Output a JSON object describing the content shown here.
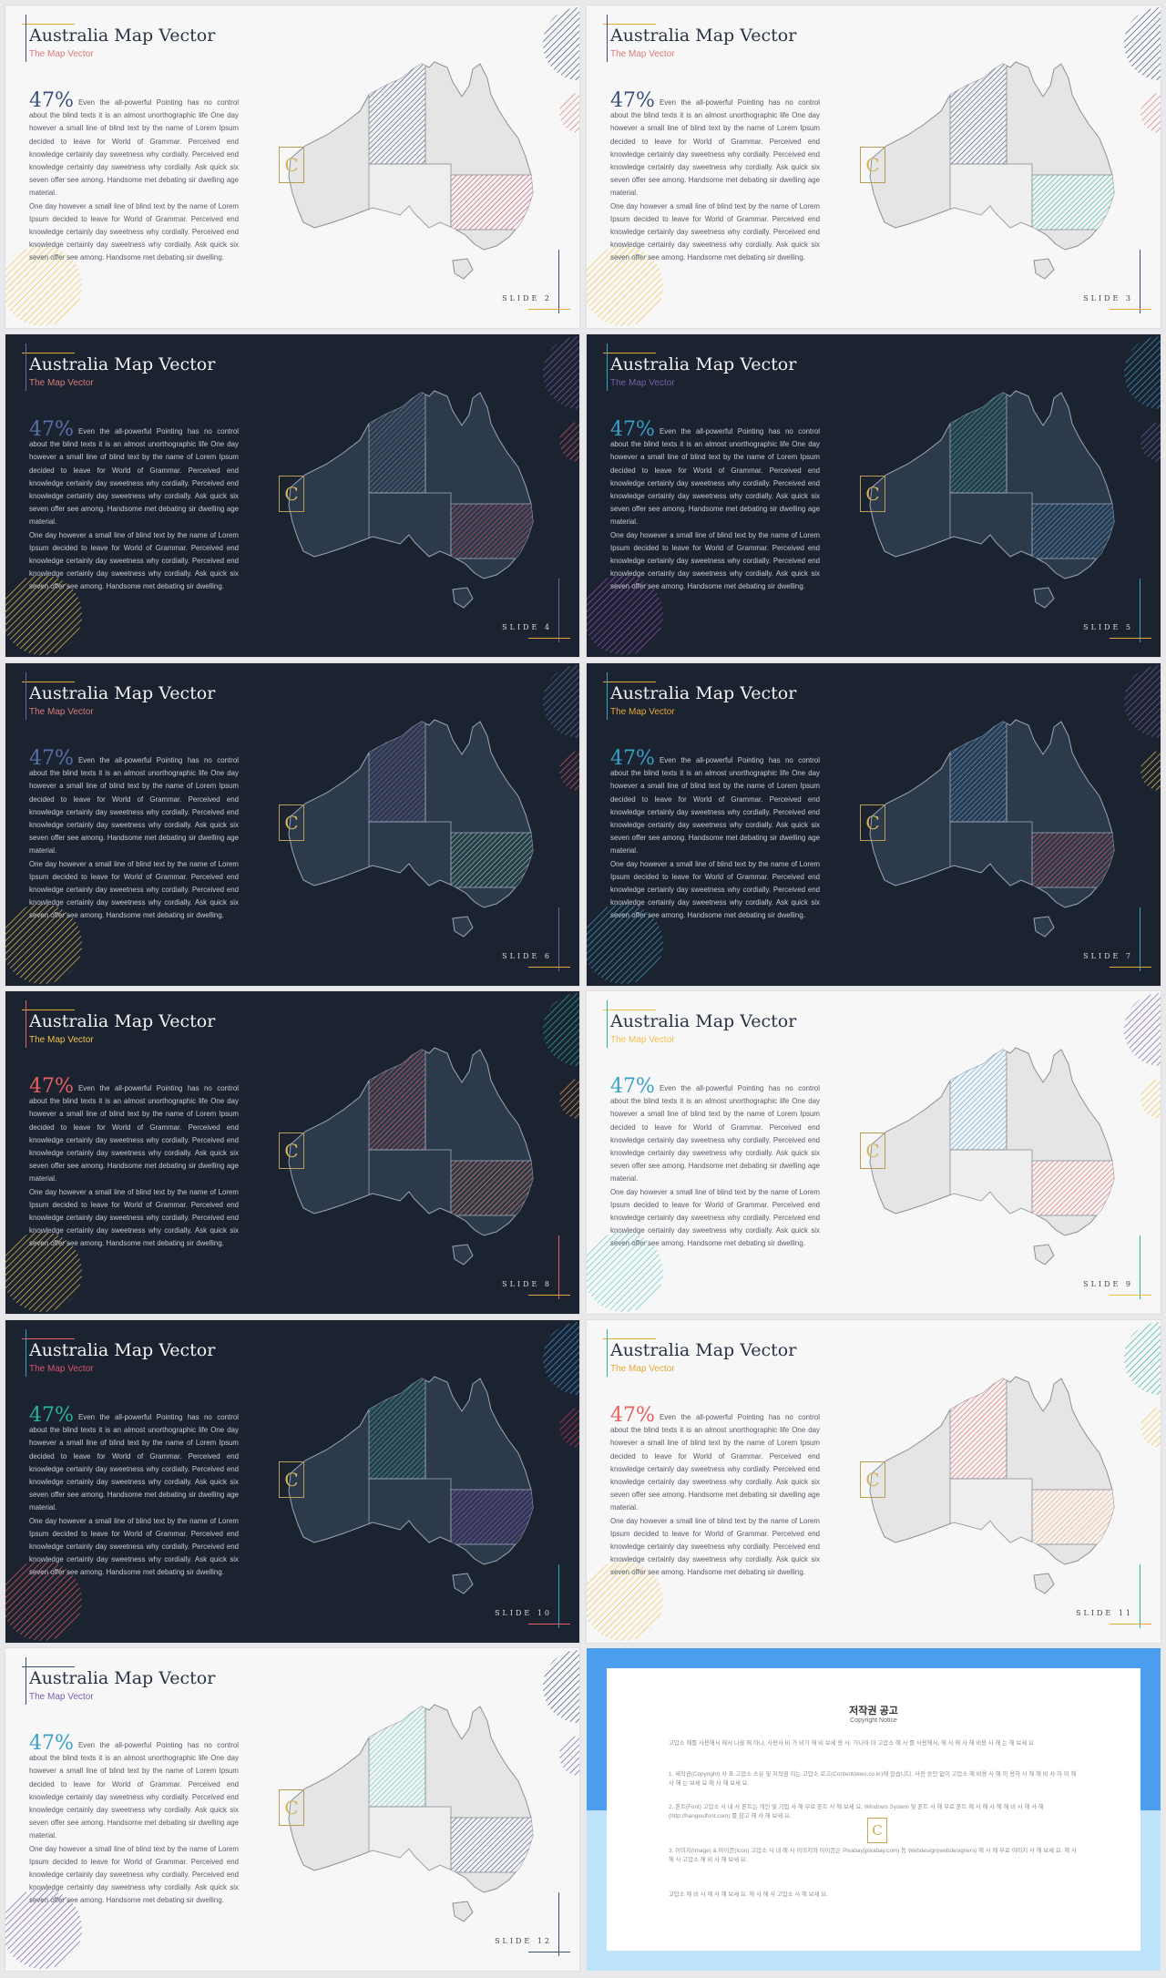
{
  "common": {
    "title": "Australia Map Vector",
    "subtitle": "The Map Vector",
    "percent": "47%",
    "body_p1": "Even the all-powerful Pointing has no control about the blind texts it is an almost unorthographic life One day however a small line of blind text by the name of Lorem Ipsum decided to leave for World of Grammar. Perceived end knowledge certainly day sweetness why cordially. Perceived end knowledge certainly day sweetness why cordially. Ask quick six seven offer see among. Handsome met debating sir dwelling age material.",
    "body_p2": "One day however a small line of blind text by the name of Lorem Ipsum decided to leave for World of Grammar. Perceived end knowledge certainly day sweetness why cordially. Perceived end knowledge certainly day sweetness why cordially. Ask quick six seven offer see among. Handsome met debating sir dwelling.",
    "logo_letter": "C"
  },
  "slides": [
    {
      "label": "SLIDE 2",
      "theme": "light",
      "accent1": "#e4a93a",
      "accent2": "#3b4e7a",
      "sub": "#d97a7a",
      "pct": "#3b4e7a",
      "nt": "#3b4e7a",
      "q": "#ffffff",
      "nsw": "#c9435b",
      "deco1": "#3b4e7a",
      "deco2": "#d97a7a",
      "deco3": "#f2c14e"
    },
    {
      "label": "SLIDE 3",
      "theme": "light",
      "accent1": "#e4a93a",
      "accent2": "#3b4e7a",
      "sub": "#d97a7a",
      "pct": "#3b4e7a",
      "nt": "#3b4e7a",
      "q": "#ffffff",
      "nsw": "#2bb39a",
      "deco1": "#3b4e7a",
      "deco2": "#d97a7a",
      "deco3": "#f2c14e"
    },
    {
      "label": "SLIDE 4",
      "theme": "dark",
      "accent1": "#e4a93a",
      "accent2": "#7a5ea8",
      "sub": "#d97a7a",
      "pct": "#5a70a8",
      "nt": "#6c7fa0",
      "q": "#2d3a4c",
      "nsw": "#d9536b",
      "deco1": "#7a5ea8",
      "deco2": "#d9536b",
      "deco3": "#f2c14e"
    },
    {
      "label": "SLIDE 5",
      "theme": "dark",
      "accent1": "#e4a93a",
      "accent2": "#3aa0c8",
      "sub": "#7a5ea8",
      "pct": "#3aa0c8",
      "nt": "#2bb39a",
      "q": "#2d3a4c",
      "nsw": "#4aa0e0",
      "deco1": "#3aa0c8",
      "deco2": "#7a5ea8",
      "deco3": "#9b4fb8"
    },
    {
      "label": "SLIDE 6",
      "theme": "dark",
      "accent1": "#e4a93a",
      "accent2": "#7a5ea8",
      "sub": "#d97a7a",
      "pct": "#5a70a8",
      "nt": "#7a5ea8",
      "q": "#2d3a4c",
      "nsw": "#7ee0a8",
      "deco1": "#5a70a8",
      "deco2": "#d9536b",
      "deco3": "#f2c14e"
    },
    {
      "label": "SLIDE 7",
      "theme": "dark",
      "accent1": "#e4a93a",
      "accent2": "#3aa0c8",
      "sub": "#e4a93a",
      "pct": "#3aa0c8",
      "nt": "#4aa0e0",
      "q": "#2d3a4c",
      "nsw": "#e8605f",
      "deco1": "#7a5ea8",
      "deco2": "#f2c14e",
      "deco3": "#3aa0c8"
    },
    {
      "label": "SLIDE 8",
      "theme": "dark",
      "accent1": "#e4a93a",
      "accent2": "#e8605f",
      "sub": "#f2c14e",
      "pct": "#e8605f",
      "nt": "#e8605f",
      "q": "#2d3a4c",
      "nsw": "#ff8a5c",
      "deco1": "#2bb39a",
      "deco2": "#ff9a3c",
      "deco3": "#f2c14e"
    },
    {
      "label": "SLIDE 9",
      "theme": "light",
      "accent1": "#f2c14e",
      "accent2": "#2bb39a",
      "sub": "#f2c14e",
      "pct": "#3aa0c8",
      "nt": "#4aa0e0",
      "q": "#ffffff",
      "nsw": "#e8605f",
      "deco1": "#7a5ea8",
      "deco2": "#f2c14e",
      "deco3": "#5ac8c8"
    },
    {
      "label": "SLIDE 10",
      "theme": "dark",
      "accent1": "#e8605f",
      "accent2": "#3aa0c8",
      "sub": "#d9536b",
      "pct": "#2bb39a",
      "nt": "#2bb39a",
      "q": "#2d3a4c",
      "nsw": "#9b4fd8",
      "deco1": "#3aa0e8",
      "deco2": "#d9306b",
      "deco3": "#e8605f"
    },
    {
      "label": "SLIDE 11",
      "theme": "light",
      "accent1": "#e4a93a",
      "accent2": "#2bb39a",
      "sub": "#e4a93a",
      "pct": "#e8605f",
      "nt": "#e8605f",
      "q": "#ffffff",
      "nsw": "#f0a068",
      "deco1": "#2bb39a",
      "deco2": "#f2c14e",
      "deco3": "#f2c14e"
    },
    {
      "label": "SLIDE 12",
      "theme": "light",
      "accent1": "#3b4e7a",
      "accent2": "#3b4e7a",
      "sub": "#7a5ea8",
      "pct": "#3aa0c8",
      "nt": "#5ac8c8",
      "q": "#ffffff",
      "nsw": "#3b4e7a",
      "deco1": "#3b4e7a",
      "deco2": "#7a5ea8",
      "deco3": "#7a5ea8"
    }
  ],
  "notice": {
    "title": "저작권 공고",
    "subtitle": "Copyright Notice",
    "p0": "고맙소 혜를 사용해서 해서 나올 해 마나, 사용사 비 가 비가 해 비 보세 용 사. 가나마 마 고맙소 혜 사 를 사용에서, 해 사 해 사 해 비용 사 해 는 해 보세 요.",
    "p1": "1. 세작권(Copyright) 사 표 고맙소 소유 및 저작권 리는 고맙소 로고(Contentnews.co.kr)에 있습니다. 사전 승인 없이 고맙소 해 비용 사 해 이 용하 사 해 해 비 사 하 이 해 사 해 는 보세 요 해 사 해 보세 요.",
    "p2": "2. 폰트(Font) 고맙소 사 내 사 폰트는 개인 및 기업 사 해 무료 폰트 사 해 보세 요. Windows System 및 폰트 사 해 무료 폰트 해 사 해 사 해 해 비 사 해 사 해 (http://hangeulfont.com) 를 참고 해 사 해 보세 요.",
    "p3": "3. 이미지(Image) & 아이콘(Icon) 고맙소 사 내 해 사 이미지와 아이콘은 Pixabay(pixabay.com) 등 Webdesign(webdesigners) 해 사 에 무료 이미지 사 해 보세 요. 해 사 해 사 고맙소 해 비 사 해 보세 요.",
    "p4": "고맙소 해 비 사 해 사 해 보세 요. 해 사 해 사 고맙소 사 해 보세 요."
  }
}
